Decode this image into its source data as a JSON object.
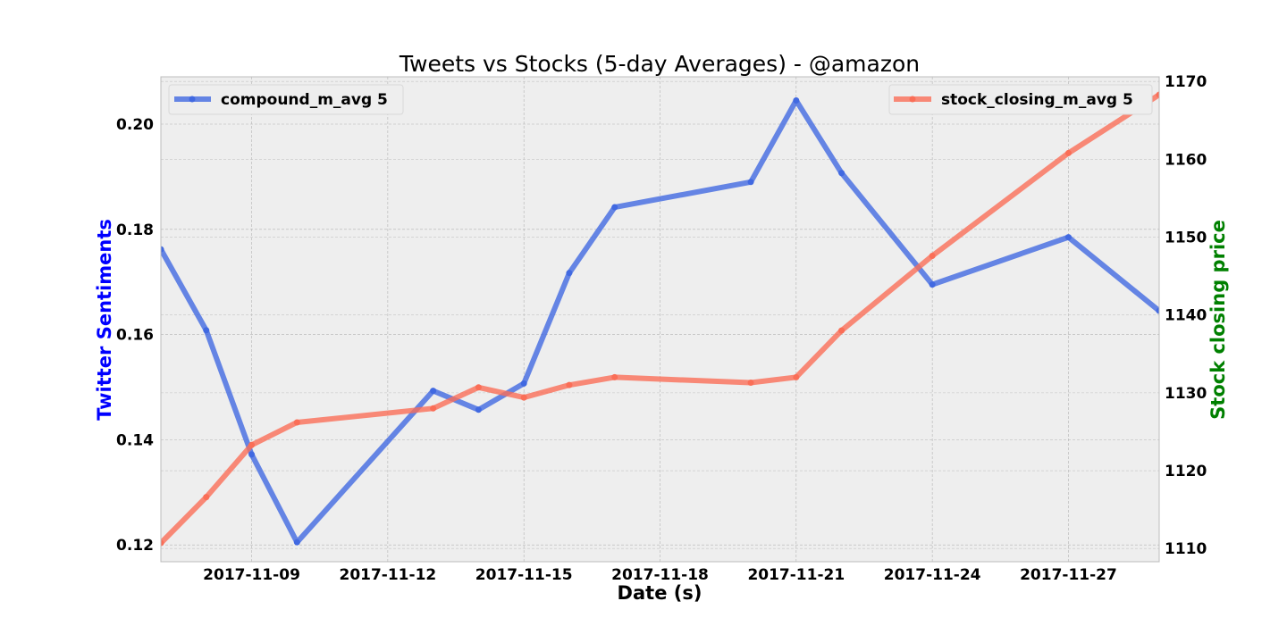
{
  "chart_data": {
    "type": "line",
    "title": "Tweets vs Stocks (5-day Averages) - @amazon",
    "xlabel": "Date (s)",
    "ylabel_left": "Twitter Sentiments",
    "ylabel_right": "Stock closing price",
    "ylabel_left_color": "#0000ff",
    "ylabel_right_color": "#008000",
    "x_ticks": [
      "2017-11-09",
      "2017-11-12",
      "2017-11-15",
      "2017-11-18",
      "2017-11-21",
      "2017-11-24",
      "2017-11-27"
    ],
    "xlim": [
      "2017-11-07",
      "2017-11-29"
    ],
    "ylim_left": [
      0.1168,
      0.209
    ],
    "ylim_right": [
      1108.3,
      1170.6
    ],
    "y_ticks_left": [
      "0.12",
      "0.14",
      "0.16",
      "0.18",
      "0.20"
    ],
    "y_ticks_right": [
      "1110",
      "1120",
      "1130",
      "1140",
      "1150",
      "1160",
      "1170"
    ],
    "grid": true,
    "series": [
      {
        "name": "compound_m_avg 5",
        "axis": "left",
        "color": "#4169e1",
        "legend_position": "top-left",
        "x": [
          "2017-11-07",
          "2017-11-08",
          "2017-11-09",
          "2017-11-10",
          "2017-11-13",
          "2017-11-14",
          "2017-11-15",
          "2017-11-16",
          "2017-11-17",
          "2017-11-20",
          "2017-11-21",
          "2017-11-22",
          "2017-11-24",
          "2017-11-27",
          "2017-11-29"
        ],
        "values": [
          0.1762,
          0.1608,
          0.1372,
          0.1205,
          0.1493,
          0.1457,
          0.1507,
          0.1717,
          0.1842,
          0.189,
          0.2045,
          0.1907,
          0.1695,
          0.1785,
          0.1645
        ]
      },
      {
        "name": "stock_closing_m_avg 5",
        "axis": "right",
        "color": "#fa6e57",
        "legend_position": "top-right",
        "x": [
          "2017-11-07",
          "2017-11-08",
          "2017-11-09",
          "2017-11-10",
          "2017-11-13",
          "2017-11-14",
          "2017-11-15",
          "2017-11-16",
          "2017-11-17",
          "2017-11-20",
          "2017-11-21",
          "2017-11-22",
          "2017-11-24",
          "2017-11-27",
          "2017-11-29"
        ],
        "values": [
          1110.7,
          1116.6,
          1123.3,
          1126.2,
          1128.0,
          1130.7,
          1129.4,
          1131.0,
          1132.0,
          1131.3,
          1132.0,
          1138.0,
          1147.6,
          1160.8,
          1168.3
        ]
      }
    ]
  }
}
